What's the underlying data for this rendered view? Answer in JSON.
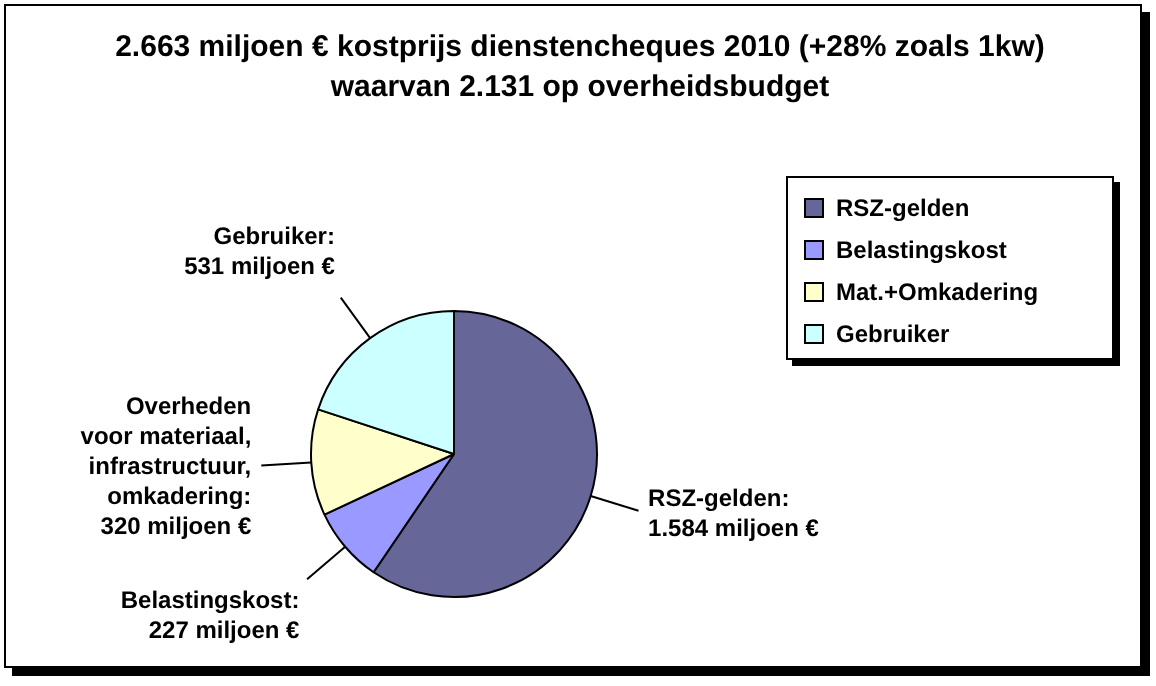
{
  "chart_data": {
    "type": "pie",
    "title": "2.663 miljoen € kostprijs dienstencheques 2010 (+28% zoals 1kw) waarvan 2.131 op overheidsbudget",
    "categories": [
      "RSZ-gelden",
      "Belastingskost",
      "Mat.+Omkadering",
      "Gebruiker"
    ],
    "values": [
      1584,
      227,
      320,
      531
    ],
    "colors": [
      "#666699",
      "#9999ff",
      "#ffffcc",
      "#ccffff"
    ],
    "value_labels": [
      "RSZ-gelden:\n1.584 miljoen €",
      "Belastingskost:\n227 miljoen €",
      "Overheden\nvoor materiaal,\ninfrastructuur,\nomkadering:\n320 miljoen €",
      "Gebruiker:\n531 miljoen €"
    ],
    "legend": "right"
  }
}
